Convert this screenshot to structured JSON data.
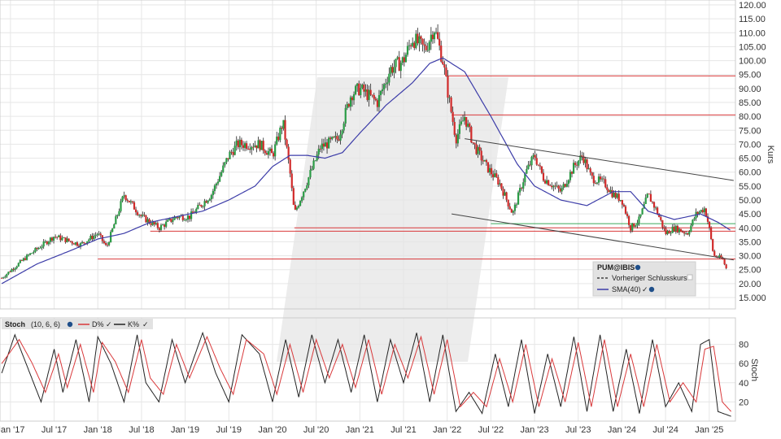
{
  "colors": {
    "background": "#ffffff",
    "grid": "#e6e6e6",
    "candle_up": "#2a9c45",
    "candle_down": "#d12a2a",
    "wick": "#222222",
    "sma": "#3c3ca8",
    "support_resistance": "#d9383a",
    "trend_channel": "#444444",
    "green_level": "#3aa65a",
    "stoch_k": "#222222",
    "stoch_d": "#d9383a",
    "watermark": "#ececec"
  },
  "chart_data": [
    {
      "type": "candlestick",
      "ylabel": "Kurs",
      "ylim": [
        13,
        121
      ],
      "y_ticks": [
        "15.000",
        "20.00",
        "25.00",
        "30.00",
        "35.00",
        "40.00",
        "45.00",
        "50.00",
        "55.00",
        "60.00",
        "65.00",
        "70.00",
        "75.00",
        "80.00",
        "85.00",
        "90.00",
        "95.00",
        "100.00",
        "105.00",
        "110.00",
        "115.00",
        "120.00"
      ],
      "y_tick_values": [
        15,
        20,
        25,
        30,
        35,
        40,
        45,
        50,
        55,
        60,
        65,
        70,
        75,
        80,
        85,
        90,
        95,
        100,
        105,
        110,
        115,
        120
      ],
      "x_ticks": [
        "Jan '17",
        "Jul '17",
        "Jan '18",
        "Jul '18",
        "Jan '19",
        "Jul '19",
        "Jan '20",
        "Jul '20",
        "Jan '21",
        "Jul '21",
        "Jan '22",
        "Jul '22",
        "Jan '23",
        "Jul '23",
        "Jan '24",
        "Jul '24",
        "Jan '25"
      ],
      "x_range": [
        2016.88,
        2025.3
      ],
      "grid": true,
      "price_anchors": {
        "t": [
          2016.9,
          2017.2,
          2017.5,
          2017.8,
          2018.0,
          2018.1,
          2018.3,
          2018.5,
          2018.7,
          2018.9,
          2019.05,
          2019.3,
          2019.5,
          2019.6,
          2019.85,
          2020.0,
          2020.12,
          2020.2,
          2020.25,
          2020.4,
          2020.55,
          2020.75,
          2020.9,
          2021.0,
          2021.2,
          2021.35,
          2021.5,
          2021.6,
          2021.75,
          2021.85,
          2021.95,
          2022.0,
          2022.1,
          2022.2,
          2022.3,
          2022.45,
          2022.6,
          2022.75,
          2022.9,
          2023.0,
          2023.1,
          2023.3,
          2023.45,
          2023.55,
          2023.65,
          2023.8,
          2023.9,
          2024.0,
          2024.1,
          2024.2,
          2024.3,
          2024.4,
          2024.5,
          2024.6,
          2024.75,
          2024.85,
          2024.95,
          2025.0,
          2025.05,
          2025.15,
          2025.2
        ],
        "p": [
          22,
          30,
          37,
          34,
          38,
          33,
          52,
          44,
          40,
          44,
          44,
          52,
          66,
          70,
          70,
          66,
          78,
          60,
          45,
          57,
          69,
          72,
          88,
          90,
          85,
          97,
          100,
          108,
          104,
          112,
          100,
          90,
          72,
          80,
          70,
          62,
          56,
          45,
          60,
          66,
          58,
          53,
          62,
          66,
          58,
          56,
          52,
          50,
          40,
          43,
          52,
          46,
          38,
          40,
          38,
          45,
          47,
          40,
          30,
          29,
          25
        ]
      },
      "sma_anchors": {
        "t": [
          2016.9,
          2017.3,
          2017.7,
          2018.0,
          2018.3,
          2018.6,
          2018.9,
          2019.2,
          2019.5,
          2019.8,
          2020.0,
          2020.2,
          2020.4,
          2020.6,
          2020.8,
          2021.0,
          2021.3,
          2021.6,
          2021.8,
          2021.95,
          2022.2,
          2022.5,
          2022.8,
          2023.0,
          2023.3,
          2023.6,
          2023.9,
          2024.1,
          2024.3,
          2024.6,
          2024.9,
          2025.1,
          2025.25
        ],
        "p": [
          20,
          27,
          32,
          36,
          38,
          42,
          44,
          46,
          50,
          55,
          62,
          66,
          66,
          65,
          67,
          74,
          84,
          92,
          99,
          101,
          96,
          80,
          63,
          55,
          50,
          48,
          53,
          53,
          46,
          43,
          45,
          42,
          39
        ]
      },
      "horizontal_levels": [
        {
          "value": 94.5,
          "from": 2022.0
        },
        {
          "value": 80.5,
          "from": 2022.05
        },
        {
          "value": 40.0,
          "from": 2020.25
        },
        {
          "value": 38.8,
          "from": 2018.6
        },
        {
          "value": 28.8,
          "from": 2018.0
        }
      ],
      "green_level": {
        "value": 41.5,
        "from": 2022.5
      },
      "trendlines": [
        {
          "t": [
            2022.2,
            2025.28
          ],
          "p": [
            72,
            57
          ]
        },
        {
          "t": [
            2022.05,
            2025.28
          ],
          "p": [
            45,
            28.5
          ]
        }
      ],
      "legend": {
        "title": "PUM@IBIS",
        "items": [
          {
            "label": "Vorheriger Schlusskurs",
            "style": "dashed"
          },
          {
            "label": "SMA(40)",
            "style": "sma"
          }
        ]
      }
    },
    {
      "type": "line",
      "title": "Stoch",
      "params": "(10, 6, 6)",
      "ylabel": "Stoch",
      "ylim": [
        0,
        100
      ],
      "y_ticks": [
        "20",
        "40",
        "60",
        "80"
      ],
      "y_tick_values": [
        20,
        40,
        60,
        80
      ],
      "series": [
        {
          "name": "D%",
          "color_key": "stoch_d"
        },
        {
          "name": "K%",
          "color_key": "stoch_k"
        }
      ],
      "k_anchors": {
        "t": [
          2016.9,
          2017.05,
          2017.2,
          2017.35,
          2017.5,
          2017.6,
          2017.75,
          2017.9,
          2018.0,
          2018.15,
          2018.3,
          2018.45,
          2018.55,
          2018.7,
          2018.85,
          2019.0,
          2019.2,
          2019.35,
          2019.5,
          2019.65,
          2019.85,
          2020.0,
          2020.15,
          2020.3,
          2020.45,
          2020.6,
          2020.75,
          2020.9,
          2021.05,
          2021.2,
          2021.35,
          2021.5,
          2021.65,
          2021.8,
          2021.95,
          2022.1,
          2022.25,
          2022.4,
          2022.55,
          2022.7,
          2022.85,
          2023.0,
          2023.15,
          2023.3,
          2023.45,
          2023.6,
          2023.75,
          2023.9,
          2024.05,
          2024.2,
          2024.35,
          2024.5,
          2024.65,
          2024.8,
          2024.9,
          2025.0,
          2025.1,
          2025.25
        ],
        "v": [
          50,
          90,
          55,
          20,
          75,
          30,
          85,
          20,
          88,
          60,
          20,
          90,
          40,
          20,
          85,
          40,
          92,
          50,
          20,
          90,
          70,
          20,
          85,
          25,
          90,
          40,
          85,
          30,
          90,
          20,
          85,
          40,
          92,
          20,
          90,
          10,
          30,
          8,
          70,
          15,
          85,
          8,
          70,
          15,
          88,
          10,
          90,
          10,
          75,
          8,
          85,
          15,
          40,
          10,
          80,
          85,
          10,
          5
        ]
      },
      "d_anchors": {
        "t": [
          2016.9,
          2017.1,
          2017.25,
          2017.4,
          2017.55,
          2017.65,
          2017.8,
          2017.95,
          2018.05,
          2018.2,
          2018.35,
          2018.5,
          2018.6,
          2018.75,
          2018.9,
          2019.05,
          2019.25,
          2019.4,
          2019.55,
          2019.7,
          2019.9,
          2020.05,
          2020.2,
          2020.35,
          2020.5,
          2020.65,
          2020.8,
          2020.95,
          2021.1,
          2021.25,
          2021.4,
          2021.55,
          2021.7,
          2021.85,
          2022.0,
          2022.15,
          2022.3,
          2022.45,
          2022.6,
          2022.75,
          2022.9,
          2023.05,
          2023.2,
          2023.35,
          2023.5,
          2023.65,
          2023.8,
          2023.95,
          2024.1,
          2024.25,
          2024.4,
          2024.55,
          2024.7,
          2024.85,
          2024.95,
          2025.05,
          2025.15,
          2025.25
        ],
        "v": [
          60,
          85,
          60,
          30,
          70,
          35,
          80,
          30,
          82,
          62,
          30,
          85,
          45,
          28,
          80,
          45,
          88,
          55,
          28,
          85,
          70,
          28,
          80,
          30,
          85,
          45,
          80,
          35,
          85,
          28,
          80,
          45,
          88,
          28,
          85,
          15,
          30,
          15,
          65,
          20,
          80,
          15,
          65,
          20,
          82,
          15,
          85,
          15,
          70,
          15,
          80,
          20,
          40,
          20,
          75,
          78,
          20,
          10
        ]
      }
    }
  ]
}
